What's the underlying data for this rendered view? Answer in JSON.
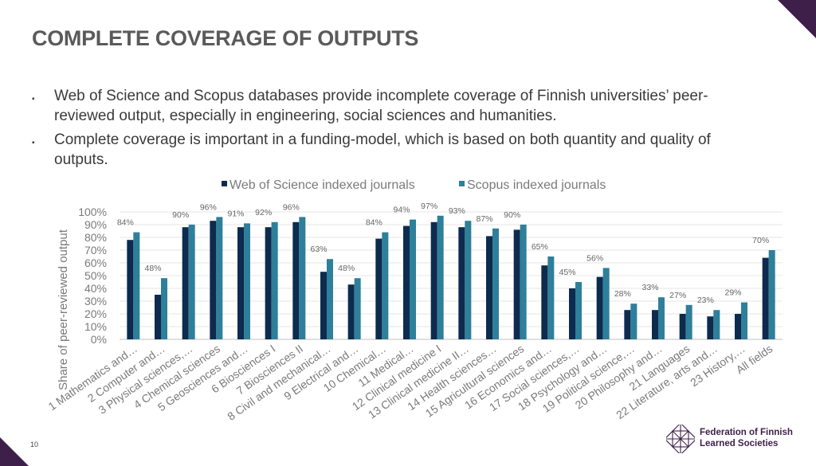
{
  "slide": {
    "title": "COMPLETE COVERAGE OF OUTPUTS",
    "bullets": [
      "Web of Science and Scopus databases provide incomplete coverage of Finnish universities’ peer-reviewed output, especially in engineering, social sciences and humanities.",
      "Complete coverage is important in a funding-model, which is based on both quantity and quality of outputs."
    ],
    "bullet_marker": "▪",
    "page_number": "10",
    "logo": {
      "line1": "Federation of Finnish",
      "line2": "Learned Societies"
    }
  },
  "colors": {
    "wos": "#0d2b4e",
    "scopus": "#2e7f9a",
    "accent": "#3d1f4a"
  },
  "chart_data": {
    "type": "bar",
    "ylabel": "Share of peer-reviewed output",
    "ylim": [
      0,
      100
    ],
    "yticks": [
      "0%",
      "10%",
      "20%",
      "30%",
      "40%",
      "50%",
      "60%",
      "70%",
      "80%",
      "90%",
      "100%"
    ],
    "legend_position": "top",
    "grid": true,
    "categories": [
      "1 Mathematics and…",
      "2 Computer and…",
      "3 Physical sciences,…",
      "4 Chemical sciences",
      "5 Geosciences and…",
      "6 Biosciences I",
      "7 Biosciences II",
      "8 Civil and mechanical…",
      "9 Electrical and…",
      "10 Chemical…",
      "11 Medical…",
      "12 Clinical medicine I",
      "13 Clinical medicine II…",
      "14 Health sciences…",
      "15 Agricultural sciences",
      "16 Economics and…",
      "17 Social sciences,…",
      "18 Psychology and…",
      "19 Political science,…",
      "20 Philosophy and…",
      "21 Languages",
      "22 Literature, arts and…",
      "23 History,…",
      "All fields"
    ],
    "series": [
      {
        "name": "Web of Science indexed journals",
        "values": [
          78,
          35,
          88,
          93,
          88,
          88,
          92,
          53,
          43,
          79,
          89,
          92,
          88,
          81,
          86,
          58,
          40,
          49,
          23,
          23,
          20,
          18,
          20,
          64
        ]
      },
      {
        "name": "Scopus indexed journals",
        "values": [
          84,
          48,
          90,
          96,
          91,
          92,
          96,
          63,
          48,
          84,
          94,
          97,
          93,
          87,
          90,
          65,
          45,
          56,
          28,
          33,
          27,
          23,
          29,
          70
        ],
        "labels": [
          "84%",
          "48%",
          "90%",
          "96%",
          "91%",
          "92%",
          "96%",
          "63%",
          "48%",
          "84%",
          "94%",
          "97%",
          "93%",
          "87%",
          "90%",
          "65%",
          "45%",
          "56%",
          "28%",
          "33%",
          "27%",
          "23%",
          "29%",
          "70%"
        ]
      }
    ]
  }
}
